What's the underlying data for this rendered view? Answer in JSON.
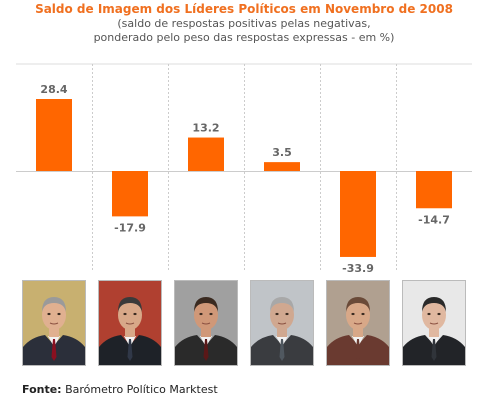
{
  "title": "Saldo de Imagem dos Líderes Políticos em Novembro de 2008",
  "subtitle_line1": "(saldo de respostas positivas pelas negativas,",
  "subtitle_line2": "ponderado pelo peso das respostas expressas - em %)",
  "source_label": "Fonte:",
  "source_text": "Barómetro Político Marktest",
  "colors": {
    "bar": "#ff6600",
    "label": "#666666",
    "title": "#f07020"
  },
  "chart_data": {
    "type": "bar",
    "categories": [
      "",
      "",
      "",
      "",
      "",
      ""
    ],
    "values": [
      28.4,
      -17.9,
      13.2,
      3.5,
      -33.9,
      -14.7
    ],
    "data_labels": [
      "28.4",
      "-17.9",
      "13.2",
      "3.5",
      "-33.9",
      "-14.7"
    ],
    "title": "Saldo de Imagem dos Líderes Políticos em Novembro de 2008",
    "ylim": [
      -40,
      40
    ],
    "grid": true
  },
  "photos": [
    {
      "name": "leader-photo-1",
      "suit": "#2b2f3a",
      "skin": "#e0b090",
      "hair": "#9a9a9a",
      "bg": "#c8b070",
      "tie": "#8a1020"
    },
    {
      "name": "leader-photo-2",
      "suit": "#1e2228",
      "skin": "#d8a888",
      "hair": "#3a3a3a",
      "bg": "#b04030",
      "tie": "#303848"
    },
    {
      "name": "leader-photo-3",
      "suit": "#2a2a2a",
      "skin": "#d09878",
      "hair": "#3a2a20",
      "bg": "#a0a0a0",
      "tie": "#5a1818"
    },
    {
      "name": "leader-photo-4",
      "suit": "#3a3c40",
      "skin": "#d0a890",
      "hair": "#a8a8a8",
      "bg": "#c0c4c8",
      "tie": "#505860"
    },
    {
      "name": "leader-photo-5",
      "suit": "#6a3a30",
      "skin": "#d8a888",
      "hair": "#6a4a38",
      "bg": "#b0a090",
      "tie": "#6a3a30"
    },
    {
      "name": "leader-photo-6",
      "suit": "#222428",
      "skin": "#e0b8a0",
      "hair": "#2a2a2a",
      "bg": "#e8e8e8",
      "tie": "#30343a"
    }
  ]
}
